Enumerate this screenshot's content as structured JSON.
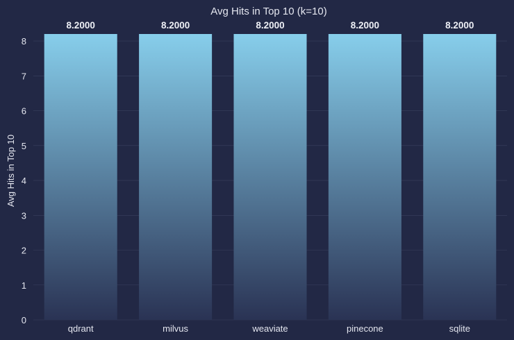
{
  "chart_data": {
    "type": "bar",
    "title": "Avg Hits in Top 10 (k=10)",
    "xlabel": "",
    "ylabel": "Avg Hits in Top 10",
    "categories": [
      "qdrant",
      "milvus",
      "weaviate",
      "pinecone",
      "sqlite"
    ],
    "values": [
      8.2,
      8.2,
      8.2,
      8.2,
      8.2
    ],
    "data_labels": [
      "8.2000",
      "8.2000",
      "8.2000",
      "8.2000",
      "8.2000"
    ],
    "yticks": [
      0,
      1,
      2,
      3,
      4,
      5,
      6,
      7,
      8
    ],
    "ylim": [
      0,
      8.2
    ],
    "grid": true,
    "colors": {
      "background": "#222845",
      "bar_top": "#87ceeb",
      "bar_bottom": "#2a3354",
      "text": "#e4e6ef"
    }
  }
}
